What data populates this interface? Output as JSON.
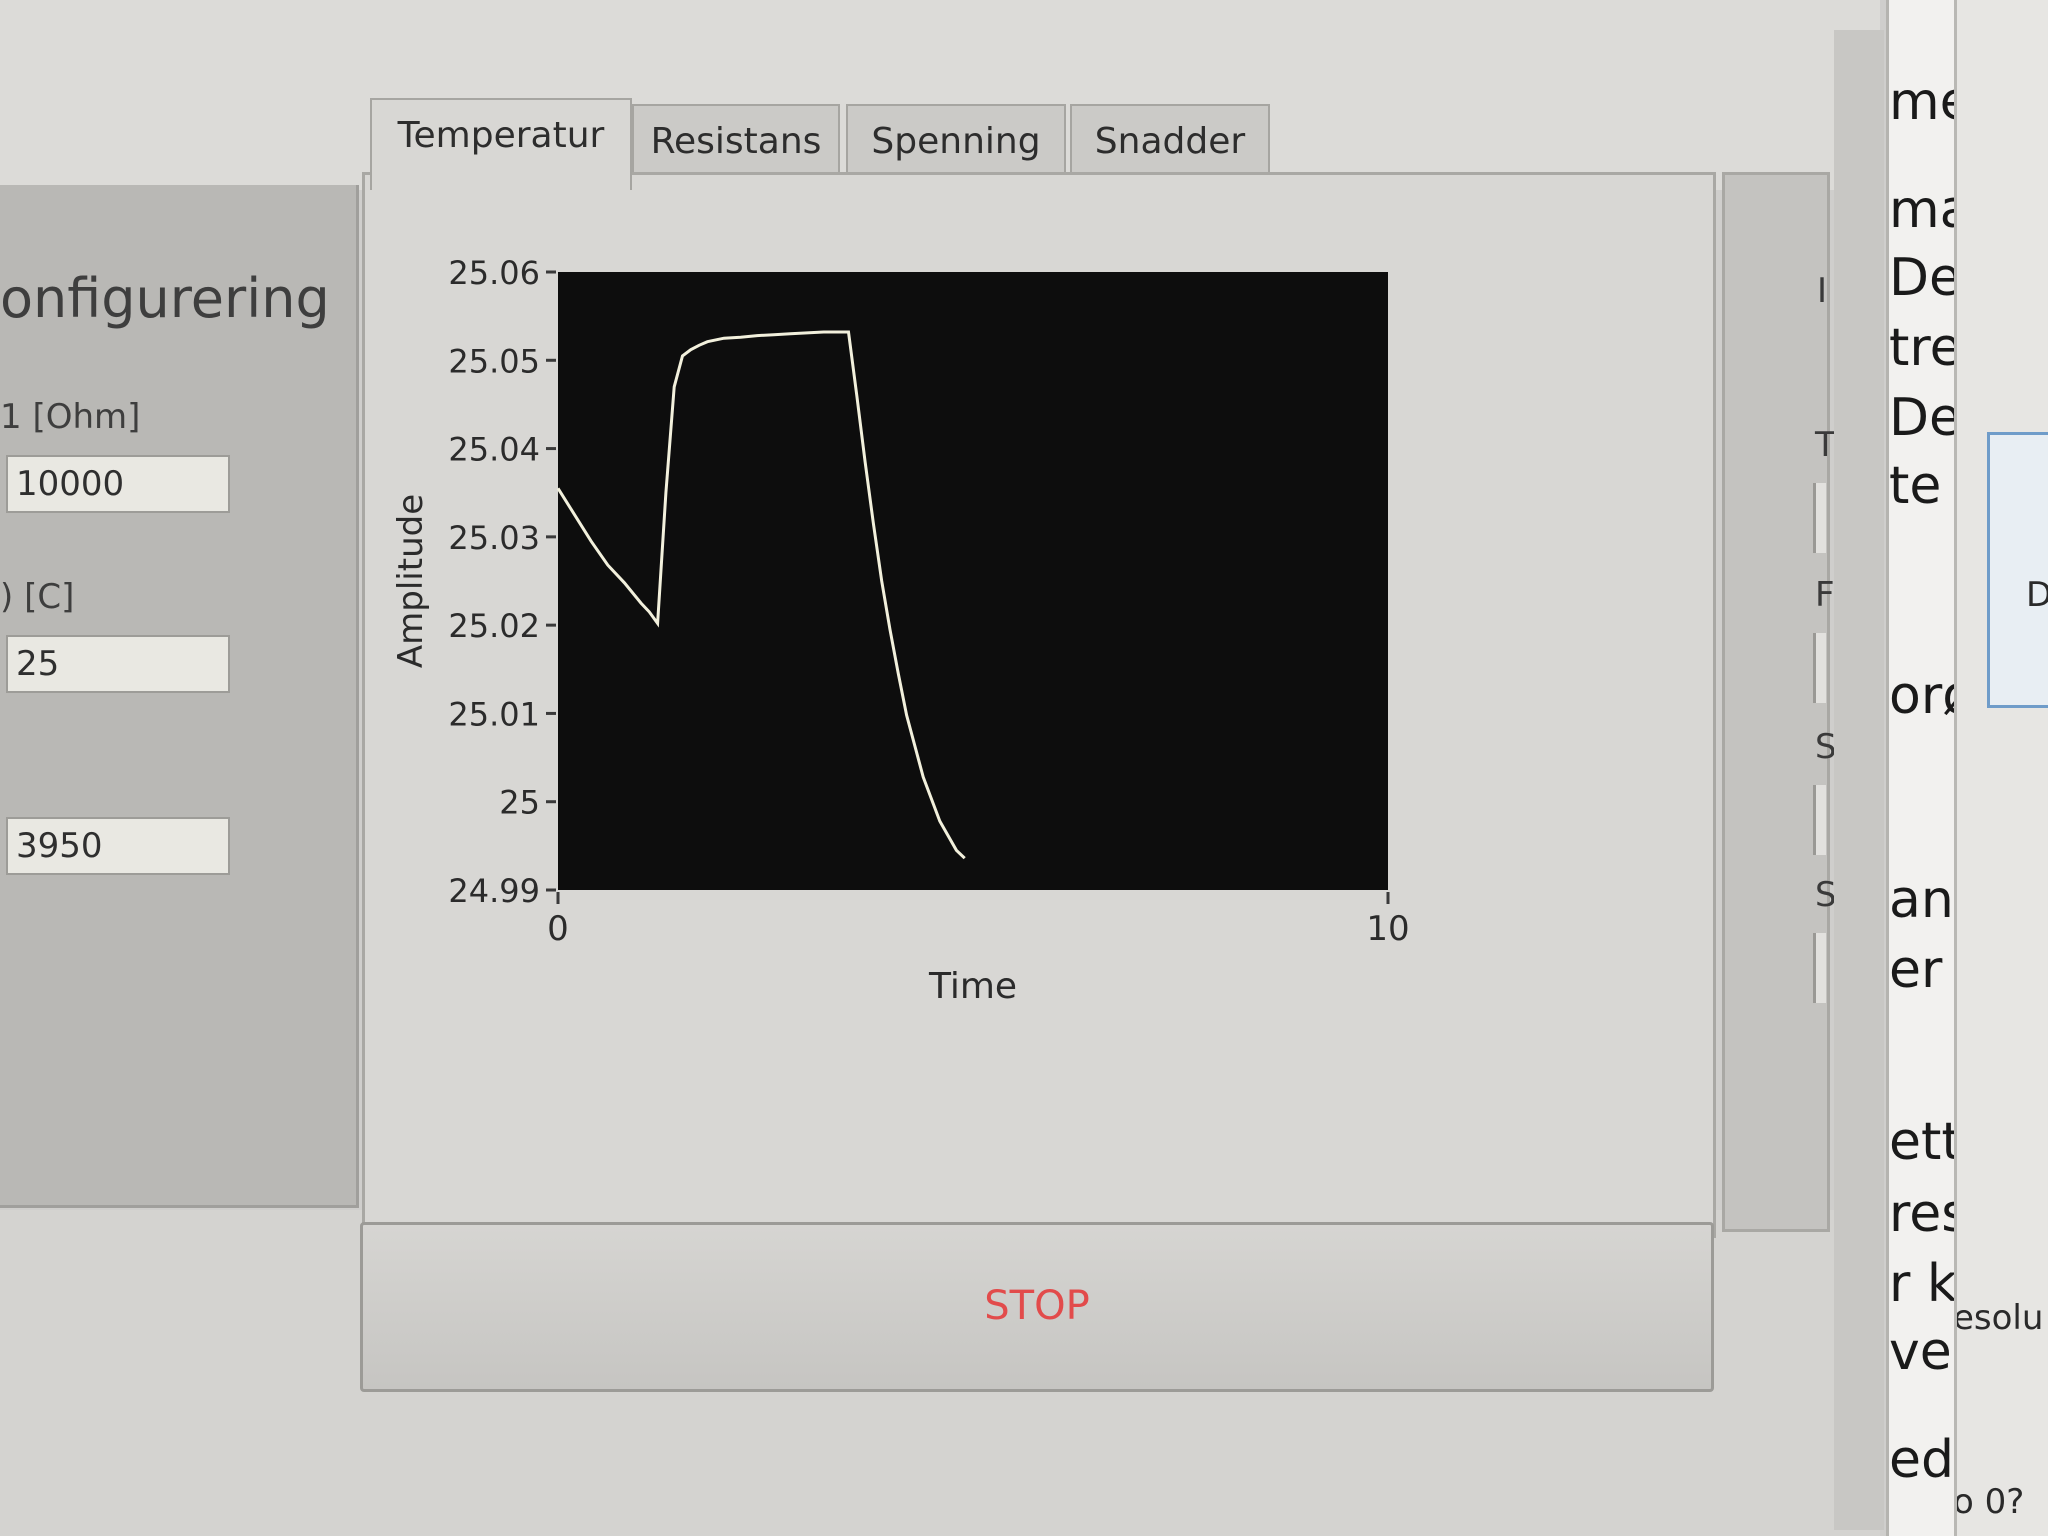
{
  "config": {
    "title": "onfigurering",
    "fields": [
      {
        "label": "1 [Ohm]",
        "value": "10000"
      },
      {
        "label": ") [C]",
        "value": "25"
      },
      {
        "label": "",
        "value": "3950"
      }
    ]
  },
  "tabs": [
    {
      "label": "Temperatur",
      "active": true
    },
    {
      "label": "Resistans",
      "active": false
    },
    {
      "label": "Spenning",
      "active": false
    },
    {
      "label": "Snadder",
      "active": false
    }
  ],
  "stop_button": {
    "label": "STOP",
    "color": "#e24b4b"
  },
  "right_panel": {
    "letters": [
      "I",
      "T",
      "F",
      "S",
      "S"
    ]
  },
  "doc_lines": [
    "me",
    "ma",
    "De",
    "tre",
    "De",
    "te",
    "orø",
    "an",
    "er",
    "ett",
    "res",
    "r k",
    "ve",
    "edr"
  ],
  "far_pane": {
    "texts": [
      "D",
      "esolu",
      "o 0?"
    ]
  },
  "chart_data": {
    "type": "line",
    "title": "",
    "xlabel": "Time",
    "ylabel": "Amplitude",
    "xlim": [
      0,
      10
    ],
    "ylim": [
      24.99,
      25.06
    ],
    "x_ticks": [
      0,
      10
    ],
    "y_ticks": [
      25.06,
      25.05,
      25.04,
      25.03,
      25.02,
      25.01,
      25,
      24.99
    ],
    "y_tick_labels": [
      "25.06",
      "25.05",
      "25.04",
      "25.03",
      "25.02",
      "25.01",
      "25",
      "24.99"
    ],
    "x_tick_labels": [
      "0",
      "10"
    ],
    "grid": false,
    "background_color": "#0d0d0d",
    "line_color": "#f2f0dc",
    "series": [
      {
        "x": [
          0,
          0.2,
          0.4,
          0.6,
          0.8,
          1.0,
          1.1,
          1.2,
          1.3,
          1.4,
          1.5,
          1.6,
          1.7,
          1.8,
          2.0,
          2.2,
          2.4,
          2.6,
          2.8,
          3.0,
          3.2,
          3.4,
          3.5,
          3.6,
          3.7,
          3.8,
          3.9,
          4.0,
          4.1,
          4.2,
          4.4,
          4.6,
          4.8,
          4.9
        ],
        "y": [
          25.0355,
          25.0325,
          25.0295,
          25.0268,
          25.0248,
          25.0225,
          25.0215,
          25.0202,
          25.035,
          25.047,
          25.0505,
          25.0512,
          25.0517,
          25.0521,
          25.0525,
          25.0526,
          25.0528,
          25.0529,
          25.053,
          25.0531,
          25.0532,
          25.0532,
          25.0532,
          25.046,
          25.0385,
          25.0315,
          25.025,
          25.0195,
          25.0145,
          25.0098,
          25.0028,
          24.9978,
          24.9945,
          24.9936
        ]
      }
    ]
  }
}
